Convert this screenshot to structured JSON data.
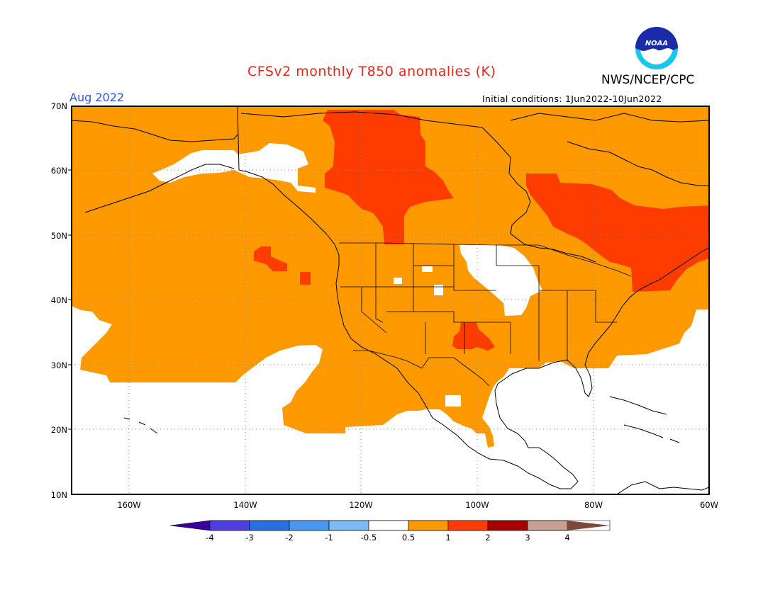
{
  "header": {
    "title": "CFSv2 monthly T850 anomalies (K)",
    "organization": "NWS/NCEP/CPC",
    "logo_text": "NOAA",
    "target_month": "Aug 2022",
    "initial_conditions": "Initial conditions: 1Jun2022-10Jun2022"
  },
  "colors": {
    "title": "#e8261c",
    "month": "#2f55e0",
    "anom_p05_1": "#ff9900",
    "anom_p1_2": "#ff3c00",
    "land_line": "#000000",
    "grid_dot": "#8a8a8a"
  },
  "map": {
    "lat_labels": [
      "70N",
      "60N",
      "50N",
      "40N",
      "30N",
      "20N",
      "10N"
    ],
    "lon_labels": [
      "160W",
      "140W",
      "120W",
      "100W",
      "80W",
      "60W"
    ]
  },
  "legend": {
    "colors": [
      "#3a009c",
      "#4f3ee0",
      "#2a6fe0",
      "#4897f2",
      "#7cb9f5",
      "#ffffff",
      "#ff9900",
      "#ff3c00",
      "#a80000",
      "#c6a090",
      "#7a4a3a"
    ],
    "labels": [
      "-4",
      "-3",
      "-2",
      "-1",
      "-0.5",
      "0.5",
      "1",
      "2",
      "3",
      "4"
    ]
  }
}
